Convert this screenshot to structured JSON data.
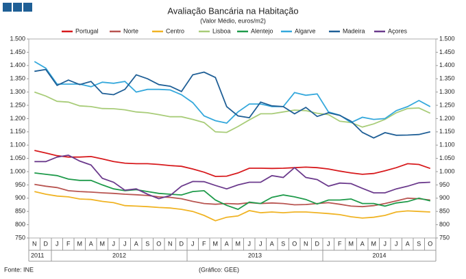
{
  "chart_data": {
    "type": "line",
    "title": "Avaliação Bancária na Habitação",
    "subtitle": "(Valor Médio, euros/m2)",
    "source": "Fonte: INE",
    "credit": "(Gráfico: GEE)",
    "categories": [
      "N",
      "D",
      "J",
      "F",
      "M",
      "A",
      "M",
      "J",
      "J",
      "A",
      "S",
      "O",
      "N",
      "D",
      "J",
      "F",
      "M",
      "A",
      "M",
      "J",
      "J",
      "A",
      "S",
      "O",
      "N",
      "D",
      "J",
      "F",
      "M",
      "A",
      "M",
      "J",
      "J",
      "A",
      "S",
      "O"
    ],
    "years": [
      "2011",
      "2012",
      "2013",
      "2014"
    ],
    "ylim": [
      750,
      1500
    ],
    "yticks": [
      {
        "value": 750,
        "label": "750"
      },
      {
        "value": 800,
        "label": "800"
      },
      {
        "value": 850,
        "label": "850"
      },
      {
        "value": 900,
        "label": "900"
      },
      {
        "value": 950,
        "label": "950"
      },
      {
        "value": 1000,
        "label": "1.000"
      },
      {
        "value": 1050,
        "label": "1.050"
      },
      {
        "value": 1100,
        "label": "1.100"
      },
      {
        "value": 1150,
        "label": "1.150"
      },
      {
        "value": 1200,
        "label": "1.200"
      },
      {
        "value": 1250,
        "label": "1.250"
      },
      {
        "value": 1300,
        "label": "1.300"
      },
      {
        "value": 1350,
        "label": "1.350"
      },
      {
        "value": 1400,
        "label": "1.400"
      },
      {
        "value": 1450,
        "label": "1.450"
      },
      {
        "value": 1500,
        "label": "1.500"
      }
    ],
    "series": [
      {
        "name": "Portugal",
        "color": "#d7191c",
        "values": [
          1080,
          1070,
          1060,
          1055,
          1055,
          1057,
          1048,
          1038,
          1032,
          1030,
          1030,
          1027,
          1023,
          1020,
          1010,
          998,
          982,
          983,
          995,
          1013,
          1013,
          1012,
          1013,
          1015,
          1017,
          1015,
          1010,
          1002,
          995,
          990,
          993,
          1003,
          1015,
          1030,
          1027,
          1012
        ]
      },
      {
        "name": "Norte",
        "color": "#b85450",
        "values": [
          952,
          945,
          940,
          928,
          925,
          923,
          920,
          918,
          915,
          913,
          910,
          905,
          903,
          898,
          888,
          880,
          877,
          880,
          878,
          883,
          880,
          882,
          880,
          875,
          876,
          880,
          883,
          877,
          870,
          868,
          872,
          880,
          890,
          900,
          898,
          893
        ]
      },
      {
        "name": "Centro",
        "color": "#f0b323",
        "values": [
          925,
          915,
          908,
          905,
          897,
          895,
          888,
          883,
          872,
          870,
          868,
          865,
          863,
          858,
          850,
          835,
          815,
          828,
          833,
          853,
          845,
          848,
          845,
          848,
          848,
          845,
          842,
          838,
          830,
          825,
          828,
          835,
          848,
          852,
          850,
          848
        ]
      },
      {
        "name": "Lisboa",
        "color": "#a8cc78",
        "values": [
          1300,
          1285,
          1265,
          1262,
          1248,
          1245,
          1238,
          1237,
          1233,
          1225,
          1222,
          1215,
          1207,
          1207,
          1197,
          1185,
          1150,
          1148,
          1170,
          1195,
          1218,
          1218,
          1225,
          1232,
          1230,
          1220,
          1215,
          1190,
          1185,
          1168,
          1180,
          1197,
          1222,
          1238,
          1240,
          1220
        ]
      },
      {
        "name": "Alentejo",
        "color": "#1e9a4a",
        "values": [
          995,
          990,
          985,
          972,
          967,
          967,
          950,
          935,
          928,
          932,
          925,
          918,
          915,
          912,
          925,
          928,
          893,
          873,
          858,
          885,
          880,
          903,
          912,
          905,
          895,
          878,
          893,
          893,
          897,
          880,
          880,
          870,
          882,
          887,
          900,
          890
        ]
      },
      {
        "name": "Algarve",
        "color": "#34a8dc",
        "values": [
          1415,
          1390,
          1330,
          1330,
          1330,
          1320,
          1337,
          1333,
          1340,
          1300,
          1310,
          1310,
          1308,
          1290,
          1260,
          1210,
          1192,
          1183,
          1225,
          1255,
          1255,
          1245,
          1245,
          1298,
          1288,
          1293,
          1225,
          1213,
          1185,
          1205,
          1197,
          1200,
          1230,
          1245,
          1268,
          1245
        ]
      },
      {
        "name": "Madeira",
        "color": "#1f5f96",
        "values": [
          1378,
          1385,
          1325,
          1345,
          1328,
          1340,
          1295,
          1290,
          1310,
          1365,
          1350,
          1328,
          1322,
          1302,
          1365,
          1375,
          1355,
          1245,
          1210,
          1203,
          1262,
          1248,
          1245,
          1218,
          1242,
          1208,
          1222,
          1212,
          1190,
          1148,
          1127,
          1147,
          1137,
          1138,
          1140,
          1150
        ]
      },
      {
        "name": "Açores",
        "color": "#6b3a8c",
        "values": [
          1038,
          1038,
          1055,
          1062,
          1040,
          1025,
          975,
          960,
          930,
          935,
          915,
          898,
          910,
          945,
          963,
          962,
          948,
          935,
          950,
          960,
          960,
          985,
          978,
          1015,
          978,
          970,
          945,
          957,
          955,
          937,
          920,
          920,
          935,
          945,
          958,
          960
        ]
      }
    ]
  }
}
